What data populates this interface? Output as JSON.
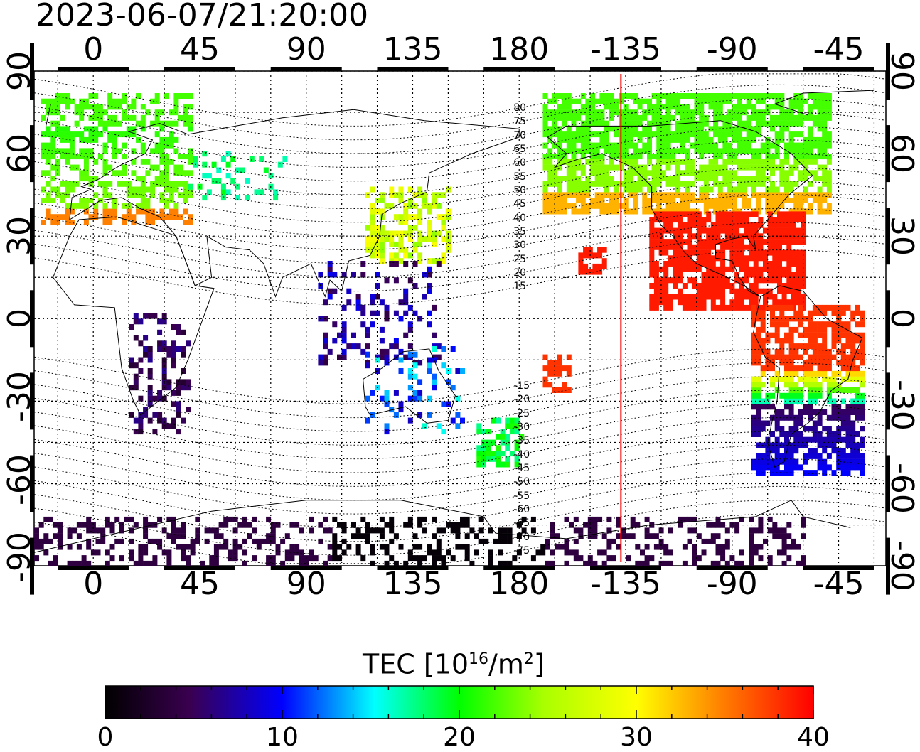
{
  "title": "2023-06-07/21:20:00",
  "lon_ticks": [
    "0",
    "45",
    "90",
    "135",
    "180",
    "-135",
    "-90",
    "-45"
  ],
  "lat_ticks": [
    "90",
    "60",
    "30",
    "0",
    "-30",
    "-60",
    "-90"
  ],
  "mlat_labels": [
    "80",
    "75",
    "70",
    "65",
    "60",
    "55",
    "50",
    "45",
    "40",
    "35",
    "30",
    "25",
    "20",
    "15",
    "-15",
    "-20",
    "-25",
    "-30",
    "-35",
    "-40",
    "-45",
    "-50",
    "-55",
    "-60",
    "-65",
    "-70",
    "-75"
  ],
  "colorbar": {
    "label_prefix": "TEC  [10",
    "label_exp": "16",
    "label_mid": "/m",
    "label_exp2": "2",
    "label_suffix": "]",
    "ticks": [
      "0",
      "10",
      "20",
      "30",
      "40"
    ],
    "min": 0,
    "max": 40
  },
  "terminator_longitude": -137,
  "colors": {
    "terminator": "#ff0000",
    "high_tec": "#ff1a1a",
    "low_tec": "#1a0010"
  }
}
